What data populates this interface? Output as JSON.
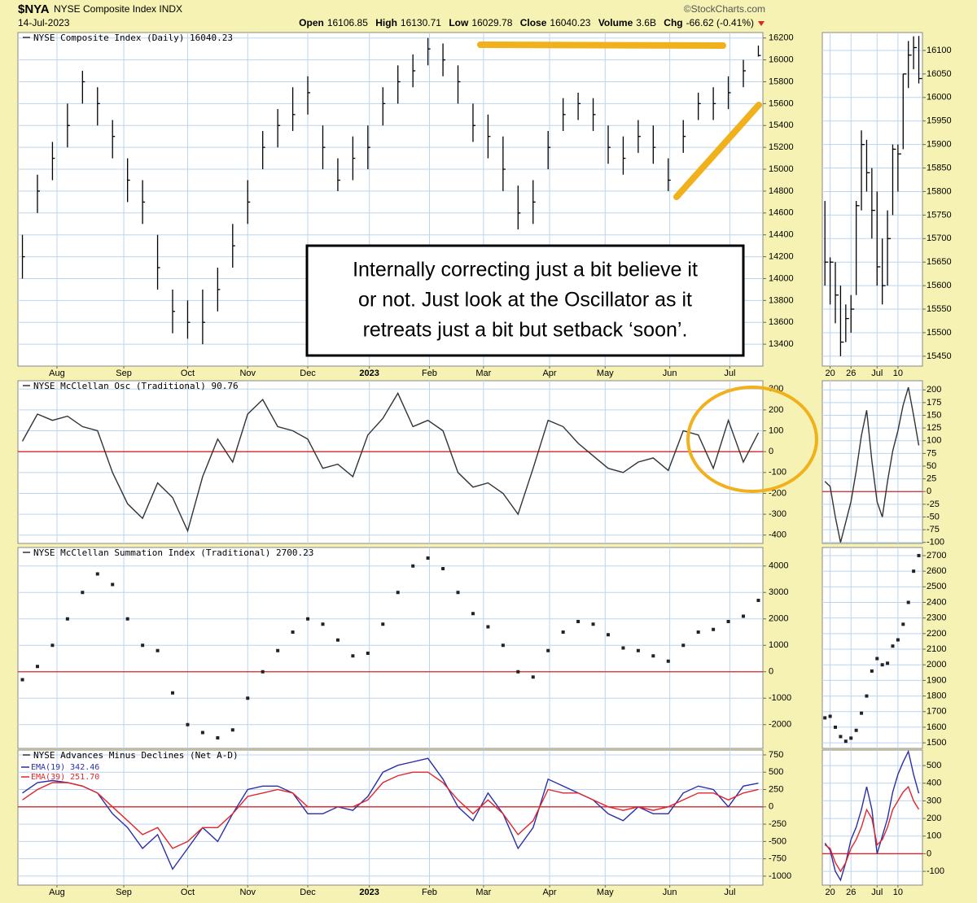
{
  "header": {
    "symbol": "$NYA",
    "name": "NYSE Composite Index INDX",
    "source": "©StockCharts.com",
    "date": "14-Jul-2023",
    "quote": [
      {
        "label": "Open",
        "value": "16106.85"
      },
      {
        "label": "High",
        "value": "16130.71"
      },
      {
        "label": "Low",
        "value": "16029.78"
      },
      {
        "label": "Close",
        "value": "16040.23"
      },
      {
        "label": "Volume",
        "value": "3.6B"
      },
      {
        "label": "Chg",
        "value": "-66.62 (-0.41%)"
      }
    ]
  },
  "chart_data": [
    {
      "type": "ohlc",
      "title": "NYSE Composite Index (Daily) 16040.23",
      "color": "#000000",
      "grid": true,
      "xlim": [
        -0.3,
        49.3
      ],
      "xticks": [
        {
          "value": 2.3,
          "label": "Aug"
        },
        {
          "value": 6.75,
          "label": "Sep"
        },
        {
          "value": 11,
          "label": "Oct"
        },
        {
          "value": 15,
          "label": "Nov"
        },
        {
          "value": 19,
          "label": "Dec"
        },
        {
          "value": 23.1,
          "label": "2023"
        },
        {
          "value": 27.1,
          "label": "Feb"
        },
        {
          "value": 30.7,
          "label": "Mar"
        },
        {
          "value": 35.1,
          "label": "Apr"
        },
        {
          "value": 38.8,
          "label": "May"
        },
        {
          "value": 43.1,
          "label": "Jun"
        },
        {
          "value": 47.1,
          "label": "Jul"
        }
      ],
      "ylim": [
        13200,
        16250
      ],
      "yticks": [
        16200,
        16000,
        15800,
        15600,
        15400,
        15200,
        15000,
        14800,
        14600,
        14400,
        14200,
        14000,
        13800,
        13600,
        13400
      ],
      "high": [
        14400,
        14950,
        15250,
        15600,
        15900,
        15750,
        15450,
        15100,
        14900,
        14400,
        13900,
        13800,
        13900,
        14100,
        14500,
        14900,
        15350,
        15550,
        15750,
        15850,
        15400,
        15100,
        15300,
        15400,
        15750,
        15950,
        16050,
        16200,
        16150,
        15950,
        15600,
        15500,
        15300,
        14850,
        14900,
        15350,
        15650,
        15700,
        15650,
        15400,
        15300,
        15450,
        15400,
        15100,
        15450,
        15700,
        15750,
        15850,
        16000,
        16130.71
      ],
      "low": [
        14000,
        14600,
        14900,
        15200,
        15600,
        15400,
        15100,
        14700,
        14500,
        13900,
        13500,
        13450,
        13400,
        13700,
        14100,
        14500,
        15000,
        15200,
        15350,
        15500,
        15000,
        14800,
        14900,
        15000,
        15400,
        15600,
        15750,
        15950,
        15850,
        15600,
        15250,
        15100,
        14800,
        14450,
        14500,
        15000,
        15350,
        15450,
        15350,
        15050,
        14950,
        15150,
        15050,
        14800,
        15150,
        15450,
        15450,
        15550,
        15750,
        16029.78
      ],
      "close": [
        14200,
        14800,
        15100,
        15400,
        15800,
        15600,
        15300,
        14900,
        14700,
        14100,
        13700,
        13600,
        13600,
        13900,
        14300,
        14700,
        15200,
        15400,
        15500,
        15700,
        15200,
        14900,
        15100,
        15200,
        15600,
        15800,
        15900,
        16100,
        16000,
        15800,
        15400,
        15300,
        15000,
        14600,
        14700,
        15200,
        15500,
        15600,
        15500,
        15200,
        15100,
        15300,
        15200,
        14900,
        15300,
        15600,
        15600,
        15700,
        15900,
        16040.23
      ],
      "annotations": [
        "Internally correcting just a bit believe it",
        "or not. Just look at the Oscillator as it",
        "retreats just a bit but setback ‘soon’."
      ]
    },
    {
      "type": "line",
      "title": "NYSE McClellan Osc (Traditional) 90.76",
      "color": "#333333",
      "grid": true,
      "xlim": [
        -0.3,
        49.3
      ],
      "ylim": [
        -440,
        340
      ],
      "yticks": [
        300,
        200,
        100,
        0,
        -100,
        -200,
        -300,
        -400
      ],
      "reference_line": {
        "value": 0,
        "color": "#d62728"
      },
      "values": [
        50,
        180,
        150,
        170,
        120,
        100,
        -100,
        -250,
        -320,
        -150,
        -220,
        -380,
        -120,
        60,
        -50,
        180,
        250,
        120,
        100,
        60,
        -80,
        -60,
        -120,
        80,
        160,
        280,
        120,
        150,
        100,
        -100,
        -170,
        -150,
        -200,
        -300,
        -80,
        150,
        120,
        40,
        -20,
        -80,
        -100,
        -50,
        -30,
        -90,
        100,
        80,
        -80,
        150,
        -50,
        90.76
      ]
    },
    {
      "type": "dot",
      "title": "NYSE McClellan Summation Index (Traditional) 2700.23",
      "color": "#222222",
      "grid": true,
      "xlim": [
        -0.3,
        49.3
      ],
      "ylim": [
        -2900,
        4700
      ],
      "yticks": [
        4000,
        3000,
        2000,
        1000,
        0,
        -1000,
        -2000
      ],
      "reference_line": {
        "value": 0,
        "color": "#d62728"
      },
      "values": [
        -300,
        200,
        1000,
        2000,
        3000,
        3700,
        3300,
        2000,
        1000,
        800,
        -800,
        -2000,
        -2300,
        -2500,
        -2200,
        -1000,
        0,
        800,
        1500,
        2000,
        1800,
        1200,
        600,
        700,
        1800,
        3000,
        4000,
        4300,
        3900,
        3000,
        2200,
        1700,
        1000,
        0,
        -200,
        800,
        1500,
        1900,
        1800,
        1400,
        900,
        800,
        600,
        400,
        1000,
        1500,
        1600,
        1900,
        2100,
        2700.23
      ]
    },
    {
      "type": "line",
      "title": "NYSE Advances Minus Declines (Net A-D)",
      "grid": true,
      "xlim": [
        -0.3,
        49.3
      ],
      "xticks": [
        {
          "value": 2.3,
          "label": "Aug"
        },
        {
          "value": 6.75,
          "label": "Sep"
        },
        {
          "value": 11,
          "label": "Oct"
        },
        {
          "value": 15,
          "label": "Nov"
        },
        {
          "value": 19,
          "label": "Dec"
        },
        {
          "value": 23.1,
          "label": "2023"
        },
        {
          "value": 27.1,
          "label": "Feb"
        },
        {
          "value": 30.7,
          "label": "Mar"
        },
        {
          "value": 35.1,
          "label": "Apr"
        },
        {
          "value": 38.8,
          "label": "May"
        },
        {
          "value": 43.1,
          "label": "Jun"
        },
        {
          "value": 47.1,
          "label": "Jul"
        }
      ],
      "ylim": [
        -1130,
        820
      ],
      "yticks": [
        750,
        500,
        250,
        0,
        -250,
        -500,
        -750,
        -1000
      ],
      "reference_line": {
        "value": 0,
        "color": "#d62728"
      },
      "series": [
        {
          "name": "EMA(19) 342.46",
          "color": "#2b2fa8",
          "values": [
            200,
            350,
            380,
            350,
            300,
            200,
            -100,
            -300,
            -600,
            -400,
            -900,
            -600,
            -300,
            -500,
            -100,
            250,
            300,
            300,
            200,
            -100,
            -100,
            0,
            -50,
            150,
            500,
            600,
            650,
            700,
            400,
            0,
            -200,
            200,
            -100,
            -600,
            -300,
            400,
            300,
            200,
            100,
            -100,
            -200,
            0,
            -100,
            -100,
            200,
            300,
            250,
            0,
            300,
            342.46
          ]
        },
        {
          "name": "EMA(39) 251.70",
          "color": "#e0262b",
          "values": [
            100,
            250,
            350,
            350,
            300,
            200,
            0,
            -200,
            -400,
            -300,
            -600,
            -500,
            -300,
            -300,
            -100,
            150,
            200,
            250,
            200,
            0,
            0,
            0,
            0,
            100,
            350,
            450,
            500,
            500,
            350,
            100,
            -100,
            100,
            -100,
            -400,
            -200,
            250,
            200,
            200,
            100,
            0,
            -50,
            0,
            -50,
            0,
            100,
            200,
            200,
            100,
            200,
            251.7
          ]
        }
      ]
    },
    {
      "type": "ohlc",
      "color": "#000000",
      "grid": true,
      "xlim": [
        -0.5,
        18.7
      ],
      "xticks": [
        {
          "value": 1,
          "label": "20"
        },
        {
          "value": 5,
          "label": "26"
        },
        {
          "value": 10,
          "label": "Jul"
        },
        {
          "value": 14,
          "label": "10"
        }
      ],
      "ylim": [
        15429,
        16138
      ],
      "yticks": [
        16100,
        16050,
        16000,
        15950,
        15900,
        15850,
        15800,
        15750,
        15700,
        15650,
        15600,
        15550,
        15500,
        15450
      ],
      "high": [
        15780,
        15660,
        15650,
        15600,
        15560,
        15580,
        15780,
        15930,
        15910,
        15850,
        15800,
        15700,
        15760,
        15900,
        15900,
        16050,
        16120,
        16130,
        16130.71
      ],
      "low": [
        15600,
        15560,
        15520,
        15450,
        15480,
        15500,
        15580,
        15760,
        15800,
        15700,
        15600,
        15560,
        15600,
        15750,
        15800,
        15890,
        16020,
        16060,
        16029.78
      ],
      "close": [
        15650,
        15650,
        15580,
        15480,
        15530,
        15550,
        15770,
        15900,
        15840,
        15760,
        15640,
        15600,
        15700,
        15890,
        15880,
        16050,
        16090,
        16106,
        16040.23
      ]
    },
    {
      "type": "line",
      "color": "#333333",
      "grid": true,
      "xlim": [
        -0.5,
        18.7
      ],
      "ylim": [
        -102,
        218
      ],
      "yticks": [
        200,
        175,
        150,
        125,
        100,
        75,
        50,
        25,
        0,
        -25,
        -50,
        -75,
        -100
      ],
      "reference_line": {
        "value": 0,
        "color": "#d62728"
      },
      "values": [
        20,
        10,
        -50,
        -100,
        -60,
        -20,
        40,
        110,
        160,
        60,
        -20,
        -50,
        20,
        80,
        120,
        170,
        205,
        150,
        90.76
      ]
    },
    {
      "type": "dot",
      "color": "#222222",
      "grid": true,
      "xlim": [
        -0.5,
        18.7
      ],
      "ylim": [
        1464,
        2752
      ],
      "yticks": [
        2700,
        2600,
        2500,
        2400,
        2300,
        2200,
        2100,
        2000,
        1900,
        1800,
        1700,
        1600,
        1500
      ],
      "values": [
        1660,
        1670,
        1600,
        1540,
        1510,
        1530,
        1580,
        1690,
        1800,
        1960,
        2040,
        2000,
        2010,
        2120,
        2160,
        2260,
        2400,
        2600,
        2700.23
      ]
    },
    {
      "type": "line",
      "grid": true,
      "xlim": [
        -0.5,
        18.7
      ],
      "xticks": [
        {
          "value": 1,
          "label": "20"
        },
        {
          "value": 5,
          "label": "26"
        },
        {
          "value": 10,
          "label": "Jul"
        },
        {
          "value": 14,
          "label": "10"
        }
      ],
      "ylim": [
        -178,
        588
      ],
      "yticks": [
        500,
        400,
        300,
        200,
        100,
        0,
        -100
      ],
      "reference_line": {
        "value": 0,
        "color": "#d62728"
      },
      "series": [
        {
          "color": "#2b2fa8",
          "values": [
            60,
            20,
            -100,
            -150,
            -50,
            80,
            150,
            250,
            380,
            250,
            0,
            100,
            200,
            350,
            450,
            520,
            580,
            450,
            342.46
          ]
        },
        {
          "color": "#e0262b",
          "values": [
            50,
            30,
            -50,
            -100,
            -50,
            30,
            80,
            150,
            250,
            200,
            50,
            80,
            150,
            250,
            300,
            350,
            380,
            300,
            251.7
          ]
        }
      ]
    }
  ]
}
